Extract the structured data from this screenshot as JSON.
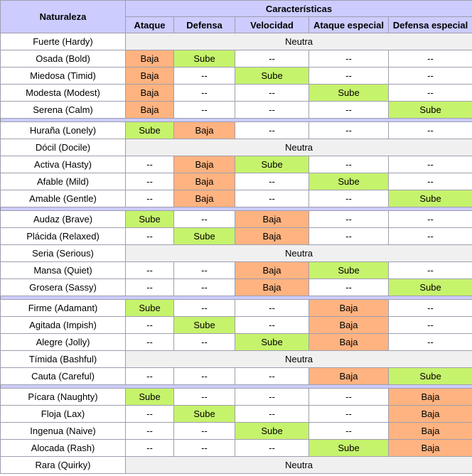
{
  "header": {
    "naturaleza": "Naturaleza",
    "caracteristicas": "Características",
    "columns": [
      "Ataque",
      "Defensa",
      "Velocidad",
      "Ataque especial",
      "Defensa especial"
    ]
  },
  "labels": {
    "up": "Sube",
    "down": "Baja",
    "none": "--",
    "neutral": "Neutra"
  },
  "colors": {
    "header_bg": "#ccccff",
    "up_bg": "#c6f36c",
    "down_bg": "#ffb380",
    "neutral_bg": "#f0f0f0",
    "separator_bg": "#ccccff"
  },
  "rows": [
    {
      "type": "neutral",
      "name": "Fuerte (Hardy)"
    },
    {
      "type": "stats",
      "name": "Osada (Bold)",
      "effects": [
        "down",
        "up",
        "none",
        "none",
        "none"
      ]
    },
    {
      "type": "stats",
      "name": "Miedosa (Timid)",
      "effects": [
        "down",
        "none",
        "up",
        "none",
        "none"
      ]
    },
    {
      "type": "stats",
      "name": "Modesta (Modest)",
      "effects": [
        "down",
        "none",
        "none",
        "up",
        "none"
      ]
    },
    {
      "type": "stats",
      "name": "Serena (Calm)",
      "effects": [
        "down",
        "none",
        "none",
        "none",
        "up"
      ]
    },
    {
      "type": "separator"
    },
    {
      "type": "stats",
      "name": "Huraña (Lonely)",
      "effects": [
        "up",
        "down",
        "none",
        "none",
        "none"
      ]
    },
    {
      "type": "neutral",
      "name": "Dócil (Docile)"
    },
    {
      "type": "stats",
      "name": "Activa (Hasty)",
      "effects": [
        "none",
        "down",
        "up",
        "none",
        "none"
      ]
    },
    {
      "type": "stats",
      "name": "Afable (Mild)",
      "effects": [
        "none",
        "down",
        "none",
        "up",
        "none"
      ]
    },
    {
      "type": "stats",
      "name": "Amable (Gentle)",
      "effects": [
        "none",
        "down",
        "none",
        "none",
        "up"
      ]
    },
    {
      "type": "separator"
    },
    {
      "type": "stats",
      "name": "Audaz (Brave)",
      "effects": [
        "up",
        "none",
        "down",
        "none",
        "none"
      ]
    },
    {
      "type": "stats",
      "name": "Plácida (Relaxed)",
      "effects": [
        "none",
        "up",
        "down",
        "none",
        "none"
      ]
    },
    {
      "type": "neutral",
      "name": "Seria (Serious)"
    },
    {
      "type": "stats",
      "name": "Mansa (Quiet)",
      "effects": [
        "none",
        "none",
        "down",
        "up",
        "none"
      ]
    },
    {
      "type": "stats",
      "name": "Grosera (Sassy)",
      "effects": [
        "none",
        "none",
        "down",
        "none",
        "up"
      ]
    },
    {
      "type": "separator"
    },
    {
      "type": "stats",
      "name": "Firme (Adamant)",
      "effects": [
        "up",
        "none",
        "none",
        "down",
        "none"
      ]
    },
    {
      "type": "stats",
      "name": "Agitada (Impish)",
      "effects": [
        "none",
        "up",
        "none",
        "down",
        "none"
      ]
    },
    {
      "type": "stats",
      "name": "Alegre (Jolly)",
      "effects": [
        "none",
        "none",
        "up",
        "down",
        "none"
      ]
    },
    {
      "type": "neutral",
      "name": "Tímida (Bashful)"
    },
    {
      "type": "stats",
      "name": "Cauta (Careful)",
      "effects": [
        "none",
        "none",
        "none",
        "down",
        "up"
      ]
    },
    {
      "type": "separator"
    },
    {
      "type": "stats",
      "name": "Pícara (Naughty)",
      "effects": [
        "up",
        "none",
        "none",
        "none",
        "down"
      ]
    },
    {
      "type": "stats",
      "name": "Floja (Lax)",
      "effects": [
        "none",
        "up",
        "none",
        "none",
        "down"
      ]
    },
    {
      "type": "stats",
      "name": "Ingenua (Naive)",
      "effects": [
        "none",
        "none",
        "up",
        "none",
        "down"
      ]
    },
    {
      "type": "stats",
      "name": "Alocada (Rash)",
      "effects": [
        "none",
        "none",
        "none",
        "up",
        "down"
      ]
    },
    {
      "type": "neutral",
      "name": "Rara (Quirky)"
    }
  ]
}
